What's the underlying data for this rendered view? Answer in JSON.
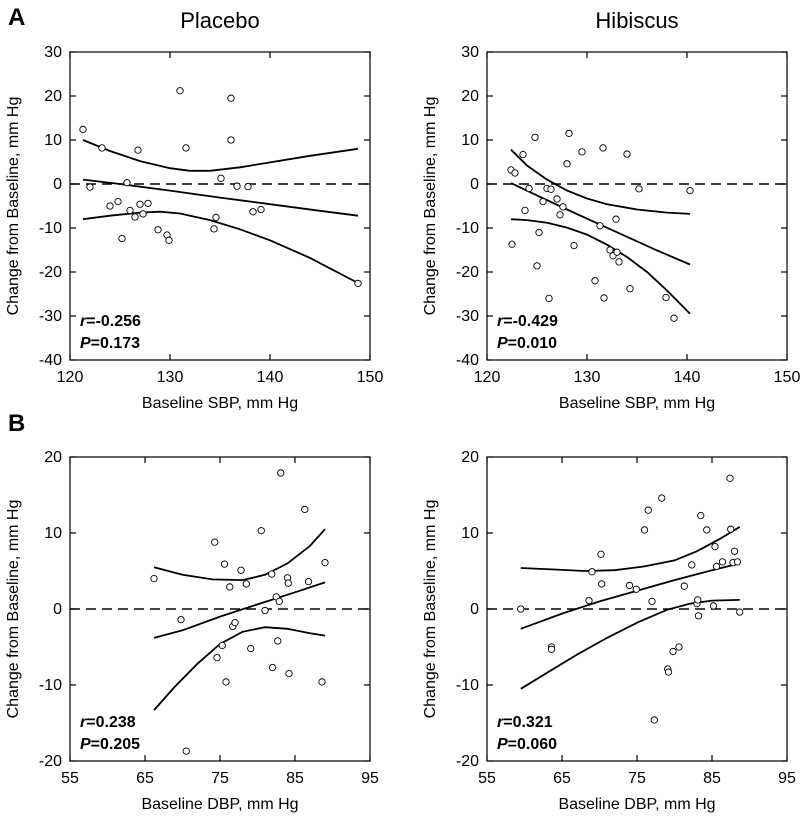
{
  "figure": {
    "panel_a": "A",
    "panel_b": "B",
    "col_left": "Placebo",
    "col_right": "Hibiscus"
  },
  "chart_data": [
    {
      "id": "sbp-placebo",
      "type": "scatter",
      "xlabel": "Baseline SBP, mm Hg",
      "ylabel": "Change from Baseline, mm Hg",
      "xlim": [
        120,
        150
      ],
      "ylim": [
        -40,
        30
      ],
      "xticks": [
        120,
        130,
        140,
        150
      ],
      "yticks": [
        -40,
        -30,
        -20,
        -10,
        0,
        10,
        20,
        30
      ],
      "stat_r": "-0.256",
      "stat_p": "0.173",
      "points": [
        [
          121.3,
          12.4
        ],
        [
          122.0,
          -0.7
        ],
        [
          123.2,
          8.2
        ],
        [
          124.0,
          -5.0
        ],
        [
          124.8,
          -4.0
        ],
        [
          125.2,
          -12.4
        ],
        [
          125.7,
          0.3
        ],
        [
          126.0,
          -6.0
        ],
        [
          126.5,
          -7.5
        ],
        [
          126.8,
          7.7
        ],
        [
          127.0,
          -4.6
        ],
        [
          127.3,
          -6.8
        ],
        [
          127.8,
          -4.4
        ],
        [
          128.8,
          -10.4
        ],
        [
          129.7,
          -11.6
        ],
        [
          129.9,
          -12.8
        ],
        [
          131.0,
          21.2
        ],
        [
          131.6,
          8.2
        ],
        [
          134.4,
          -10.2
        ],
        [
          134.6,
          -7.6
        ],
        [
          135.1,
          1.3
        ],
        [
          136.1,
          10.0
        ],
        [
          136.1,
          19.5
        ],
        [
          136.7,
          -0.5
        ],
        [
          137.8,
          -0.6
        ],
        [
          138.3,
          -6.3
        ],
        [
          139.1,
          -5.8
        ],
        [
          148.8,
          -22.6
        ]
      ],
      "fit": [
        [
          121.3,
          1.0
        ],
        [
          125,
          0.0
        ],
        [
          130,
          -1.5
        ],
        [
          135,
          -3.1
        ],
        [
          140,
          -4.6
        ],
        [
          145,
          -6.1
        ],
        [
          148.8,
          -7.2
        ]
      ],
      "ci_upper": [
        [
          121.3,
          10.0
        ],
        [
          124,
          7.5
        ],
        [
          127,
          5.2
        ],
        [
          130,
          3.6
        ],
        [
          132,
          3.0
        ],
        [
          134,
          3.0
        ],
        [
          137,
          3.8
        ],
        [
          140,
          4.9
        ],
        [
          144,
          6.4
        ],
        [
          148.8,
          8.0
        ]
      ],
      "ci_lower": [
        [
          121.3,
          -8.0
        ],
        [
          124,
          -7.2
        ],
        [
          127,
          -6.5
        ],
        [
          129,
          -6.3
        ],
        [
          131,
          -6.7
        ],
        [
          134,
          -8.2
        ],
        [
          137,
          -10.3
        ],
        [
          140,
          -12.8
        ],
        [
          144,
          -16.8
        ],
        [
          148.8,
          -22.5
        ]
      ]
    },
    {
      "id": "sbp-hibiscus",
      "type": "scatter",
      "xlabel": "Baseline SBP, mm Hg",
      "ylabel": "Change from Baseline, mm Hg",
      "xlim": [
        120,
        150
      ],
      "ylim": [
        -40,
        30
      ],
      "xticks": [
        120,
        130,
        140,
        150
      ],
      "yticks": [
        -40,
        -30,
        -20,
        -10,
        0,
        10,
        20,
        30
      ],
      "stat_r": "-0.429",
      "stat_p": "0.010",
      "points": [
        [
          122.4,
          3.2
        ],
        [
          122.5,
          -13.7
        ],
        [
          122.8,
          2.5
        ],
        [
          123.6,
          6.7
        ],
        [
          123.8,
          -6.0
        ],
        [
          124.2,
          -1.0
        ],
        [
          124.8,
          10.6
        ],
        [
          125.0,
          -18.6
        ],
        [
          125.2,
          -11.0
        ],
        [
          125.6,
          -4.0
        ],
        [
          126.0,
          -1.0
        ],
        [
          126.2,
          -26.0
        ],
        [
          126.4,
          -1.2
        ],
        [
          127.0,
          -3.4
        ],
        [
          127.3,
          -7.0
        ],
        [
          127.6,
          -5.2
        ],
        [
          128.0,
          4.6
        ],
        [
          128.2,
          11.5
        ],
        [
          128.7,
          -14.0
        ],
        [
          129.5,
          7.3
        ],
        [
          130.8,
          -22.0
        ],
        [
          131.3,
          -9.5
        ],
        [
          131.6,
          8.2
        ],
        [
          131.7,
          -25.9
        ],
        [
          132.3,
          -15.0
        ],
        [
          132.6,
          -16.3
        ],
        [
          132.9,
          -8.0
        ],
        [
          133.0,
          -15.5
        ],
        [
          133.2,
          -17.7
        ],
        [
          134.0,
          6.8
        ],
        [
          134.3,
          -23.8
        ],
        [
          135.2,
          -1.1
        ],
        [
          137.9,
          -25.8
        ],
        [
          138.7,
          -30.5
        ],
        [
          140.3,
          -1.5
        ]
      ],
      "fit": [
        [
          122.4,
          0.2
        ],
        [
          125,
          -2.6
        ],
        [
          128,
          -5.8
        ],
        [
          131,
          -8.9
        ],
        [
          134,
          -12.0
        ],
        [
          137,
          -15.1
        ],
        [
          140.3,
          -18.3
        ]
      ],
      "ci_upper": [
        [
          122.4,
          7.8
        ],
        [
          124,
          4.2
        ],
        [
          126,
          1.0
        ],
        [
          128,
          -1.5
        ],
        [
          130,
          -3.3
        ],
        [
          132,
          -4.6
        ],
        [
          135,
          -5.8
        ],
        [
          138,
          -6.5
        ],
        [
          140.3,
          -6.8
        ]
      ],
      "ci_lower": [
        [
          122.4,
          -8.0
        ],
        [
          124,
          -8.2
        ],
        [
          126,
          -8.8
        ],
        [
          128,
          -9.9
        ],
        [
          130,
          -11.5
        ],
        [
          132,
          -13.8
        ],
        [
          134,
          -16.6
        ],
        [
          136,
          -20.0
        ],
        [
          138,
          -24.2
        ],
        [
          140.3,
          -29.5
        ]
      ]
    },
    {
      "id": "dbp-placebo",
      "type": "scatter",
      "xlabel": "Baseline DBP, mm Hg",
      "ylabel": "Change from Baseline, mm Hg",
      "xlim": [
        55,
        95
      ],
      "ylim": [
        -20,
        20
      ],
      "xticks": [
        55,
        65,
        75,
        85,
        95
      ],
      "yticks": [
        -20,
        -10,
        0,
        10,
        20
      ],
      "stat_r": "0.238",
      "stat_p": "0.205",
      "points": [
        [
          66.2,
          4.0
        ],
        [
          69.8,
          -1.4
        ],
        [
          70.5,
          -18.7
        ],
        [
          74.3,
          8.8
        ],
        [
          74.6,
          -6.4
        ],
        [
          75.3,
          -4.8
        ],
        [
          75.6,
          5.9
        ],
        [
          75.8,
          -9.6
        ],
        [
          76.3,
          2.9
        ],
        [
          76.7,
          -2.3
        ],
        [
          77.0,
          -1.8
        ],
        [
          77.8,
          5.1
        ],
        [
          78.5,
          3.3
        ],
        [
          79.1,
          -5.2
        ],
        [
          80.5,
          10.3
        ],
        [
          81.0,
          -0.2
        ],
        [
          81.9,
          4.6
        ],
        [
          82.0,
          -7.7
        ],
        [
          82.5,
          1.6
        ],
        [
          82.7,
          -4.2
        ],
        [
          82.9,
          1.0
        ],
        [
          83.1,
          17.9
        ],
        [
          84.0,
          4.1
        ],
        [
          84.1,
          3.4
        ],
        [
          84.2,
          -8.5
        ],
        [
          86.3,
          13.1
        ],
        [
          86.8,
          3.6
        ],
        [
          88.6,
          -9.6
        ],
        [
          89.0,
          6.1
        ]
      ],
      "fit": [
        [
          66.2,
          -3.8
        ],
        [
          70,
          -2.8
        ],
        [
          75,
          -1.0
        ],
        [
          80,
          0.6
        ],
        [
          85,
          2.2
        ],
        [
          89,
          3.5
        ]
      ],
      "ci_upper": [
        [
          66.2,
          5.5
        ],
        [
          70,
          4.5
        ],
        [
          74,
          3.9
        ],
        [
          78,
          3.8
        ],
        [
          81,
          4.5
        ],
        [
          84,
          6.0
        ],
        [
          87,
          8.3
        ],
        [
          89,
          10.5
        ]
      ],
      "ci_lower": [
        [
          66.2,
          -13.3
        ],
        [
          69,
          -10.2
        ],
        [
          72,
          -7.2
        ],
        [
          75,
          -4.6
        ],
        [
          78,
          -3.0
        ],
        [
          81,
          -2.4
        ],
        [
          84,
          -2.6
        ],
        [
          87,
          -3.2
        ],
        [
          89,
          -3.5
        ]
      ]
    },
    {
      "id": "dbp-hibiscus",
      "type": "scatter",
      "xlabel": "Baseline DBP, mm Hg",
      "ylabel": "Change from Baseline, mm Hg",
      "xlim": [
        55,
        95
      ],
      "ylim": [
        -20,
        20
      ],
      "xticks": [
        55,
        65,
        75,
        85,
        95
      ],
      "yticks": [
        -20,
        -10,
        0,
        10,
        20
      ],
      "stat_r": "0.321",
      "stat_p": "0.060",
      "points": [
        [
          59.5,
          0.0
        ],
        [
          63.6,
          -5.0
        ],
        [
          63.6,
          -5.3
        ],
        [
          68.6,
          1.1
        ],
        [
          69.0,
          4.9
        ],
        [
          70.2,
          7.2
        ],
        [
          70.3,
          3.3
        ],
        [
          74.0,
          3.1
        ],
        [
          74.9,
          2.6
        ],
        [
          76.0,
          10.4
        ],
        [
          76.5,
          13.0
        ],
        [
          77.0,
          1.0
        ],
        [
          77.3,
          -14.6
        ],
        [
          78.3,
          14.6
        ],
        [
          79.1,
          -7.9
        ],
        [
          79.2,
          -8.3
        ],
        [
          79.8,
          -5.6
        ],
        [
          80.6,
          -5.0
        ],
        [
          81.3,
          3.0
        ],
        [
          82.3,
          5.8
        ],
        [
          83.0,
          0.7
        ],
        [
          83.1,
          1.2
        ],
        [
          83.2,
          -0.9
        ],
        [
          83.5,
          12.3
        ],
        [
          84.3,
          10.4
        ],
        [
          85.2,
          0.4
        ],
        [
          85.4,
          8.2
        ],
        [
          85.6,
          5.6
        ],
        [
          86.4,
          6.2
        ],
        [
          87.4,
          17.2
        ],
        [
          87.5,
          10.5
        ],
        [
          87.8,
          6.1
        ],
        [
          88.0,
          7.6
        ],
        [
          88.4,
          6.2
        ],
        [
          88.7,
          -0.4
        ]
      ],
      "fit": [
        [
          59.5,
          -2.6
        ],
        [
          65,
          -0.6
        ],
        [
          70,
          1.0
        ],
        [
          75,
          2.4
        ],
        [
          80,
          3.8
        ],
        [
          85,
          5.1
        ],
        [
          88.7,
          6.0
        ]
      ],
      "ci_upper": [
        [
          59.5,
          5.4
        ],
        [
          64,
          5.2
        ],
        [
          68,
          5.0
        ],
        [
          72,
          5.1
        ],
        [
          76,
          5.6
        ],
        [
          80,
          6.4
        ],
        [
          83,
          7.6
        ],
        [
          86,
          9.2
        ],
        [
          88.7,
          10.8
        ]
      ],
      "ci_lower": [
        [
          59.5,
          -10.5
        ],
        [
          63,
          -8.4
        ],
        [
          67,
          -6.0
        ],
        [
          71,
          -3.8
        ],
        [
          75,
          -1.8
        ],
        [
          79,
          -0.1
        ],
        [
          82,
          0.7
        ],
        [
          85,
          1.1
        ],
        [
          88.7,
          1.2
        ]
      ]
    }
  ]
}
